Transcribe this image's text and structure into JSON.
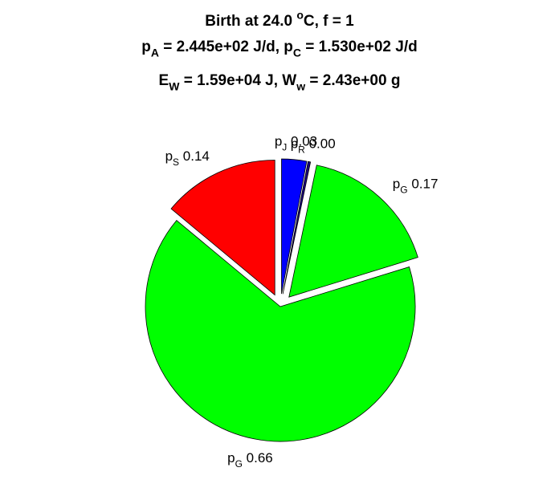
{
  "chart_data": {
    "type": "pie",
    "title": [
      "Birth at 24.0 ^oC, f = 1",
      "p_A = 2.445e+02 J/d, p_C = 1.530e+02 J/d",
      "E_W = 1.59e+04 J, W_w = 2.43e+00 g"
    ],
    "categories": [
      "p_J",
      "p_R",
      "p_G",
      "p_G",
      "p_S"
    ],
    "values": [
      0.03,
      0.003,
      0.17,
      0.66,
      0.14
    ],
    "value_labels": [
      "0.03",
      "0.00",
      "0.17",
      "0.66",
      "0.14"
    ],
    "colors": [
      "#0000ff",
      "#1a0080",
      "#00ff00",
      "#00ff00",
      "#ff0000"
    ],
    "explode": [
      true,
      true,
      true,
      false,
      true
    ]
  }
}
